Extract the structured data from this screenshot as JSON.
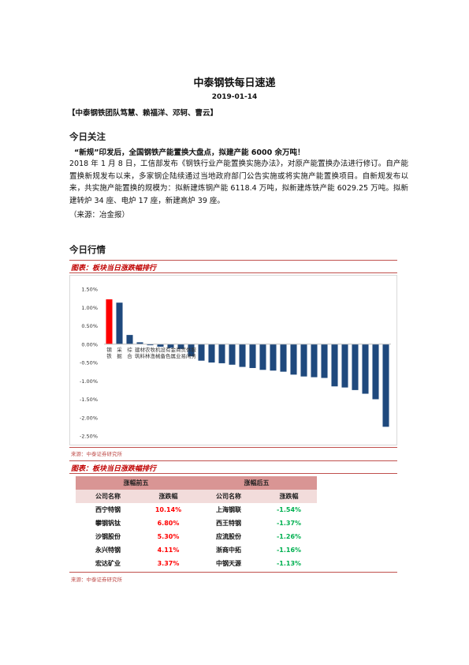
{
  "header": {
    "title": "中泰钢铁每日速递",
    "date": "2019-01-14",
    "authors": "【中泰钢铁团队笃慧、赖福洋、邓轲、曹云】"
  },
  "focus": {
    "heading": "今日关注",
    "headline": "“新规”印发后，全国钢铁产能置换大盘点，拟建产能 6000 余万吨！",
    "body": "2018 年 1 月 8 日，工信部发布《钢铁行业产能置换实施办法》，对原产能置换办法进行修订。自产能置换新规发布以来，多家钢企陆续通过当地政府部门公告实施或将实施产能置换项目。自新规发布以来，共实施产能置换的规模为：拟新建炼钢产能 6118.4 万吨，拟新建炼铁产能 6029.25 万吨。拟新建转炉 34 座、电炉 17 座，新建高炉 39 座。",
    "source": "（来源：冶金报）"
  },
  "market": {
    "heading": "今日行情",
    "figure1_label": "图表：板块当日涨跌幅排行",
    "figure1_source": "来源：中泰证券研究所",
    "figure2_label": "图表：板块当日涨跌幅排行",
    "figure2_source": "来源：中泰证券研究所"
  },
  "chart_data": {
    "type": "bar",
    "categories": [
      "钢铁",
      "采掘",
      "综合",
      "建筑材料",
      "农林牧渔",
      "机械设备",
      "有色金属",
      "商业贸易",
      "休闲服务",
      "",
      "",
      "",
      "",
      "",
      "",
      "",
      "",
      "",
      "",
      "",
      "",
      "",
      "",
      "",
      "",
      "",
      "",
      ""
    ],
    "values": [
      1.22,
      1.13,
      0.25,
      0.05,
      -0.03,
      -0.07,
      -0.1,
      -0.13,
      -0.33,
      -0.45,
      -0.5,
      -0.52,
      -0.56,
      -0.62,
      -0.65,
      -0.7,
      -0.72,
      -0.75,
      -0.83,
      -0.88,
      -0.9,
      -0.92,
      -1.15,
      -1.18,
      -1.25,
      -1.35,
      -1.5,
      -2.25
    ],
    "colors": [
      "#ff0000",
      "#1f497d"
    ],
    "ylim": [
      -2.5,
      1.5
    ],
    "yticks": [
      "1.50%",
      "1.00%",
      "0.50%",
      "0.00%",
      "-0.50%",
      "-1.00%",
      "-1.50%",
      "-2.00%",
      "-2.50%"
    ],
    "grid": false
  },
  "ranking": {
    "top_header": "涨幅前五",
    "bottom_header": "涨幅后五",
    "col_company": "公司名称",
    "col_change": "涨跌幅",
    "rows": [
      {
        "top_name": "西宁特钢",
        "top_change": "10.14%",
        "bottom_name": "上海钢联",
        "bottom_change": "-1.54%"
      },
      {
        "top_name": "攀钢钒钛",
        "top_change": "6.80%",
        "bottom_name": "西王特钢",
        "bottom_change": "-1.37%"
      },
      {
        "top_name": "沙钢股份",
        "top_change": "5.30%",
        "bottom_name": "应流股份",
        "bottom_change": "-1.26%"
      },
      {
        "top_name": "永兴特钢",
        "top_change": "4.11%",
        "bottom_name": "浙商中拓",
        "bottom_change": "-1.16%"
      },
      {
        "top_name": "宏达矿业",
        "top_change": "3.37%",
        "bottom_name": "中钢天源",
        "bottom_change": "-1.13%"
      }
    ]
  }
}
